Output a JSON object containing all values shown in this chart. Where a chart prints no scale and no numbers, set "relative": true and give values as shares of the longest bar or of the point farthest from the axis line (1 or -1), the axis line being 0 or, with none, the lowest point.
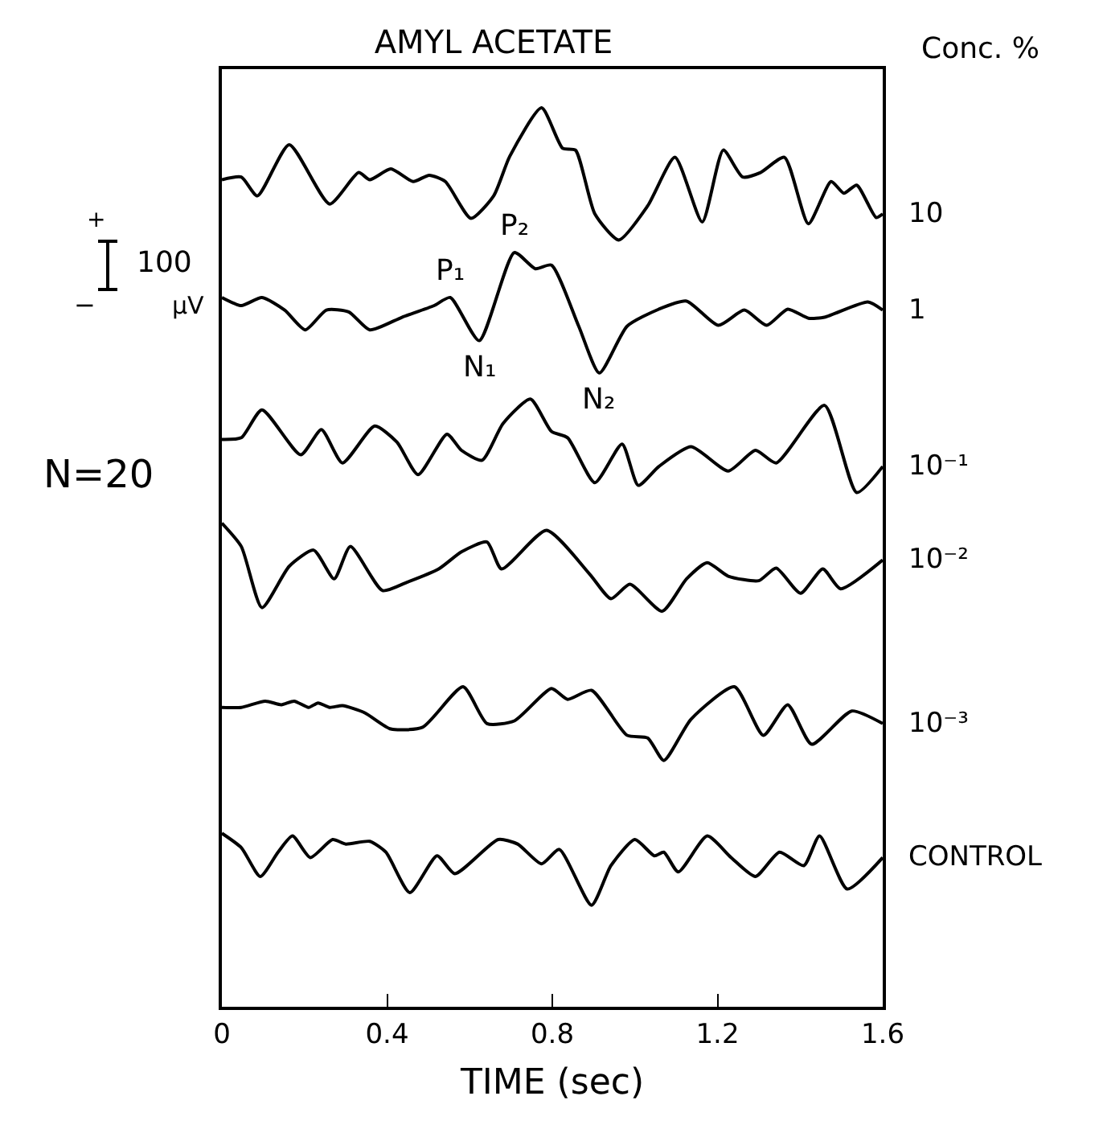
{
  "chart_data": {
    "type": "line",
    "title": "AMYL ACETATE",
    "xlabel": "TIME (sec)",
    "legend_title": "Conc. %",
    "relative": true,
    "line_style": "solid",
    "xlim": [
      0,
      1.6
    ],
    "xticks": [
      0,
      0.4,
      0.8,
      1.2,
      1.6
    ],
    "series": [
      {
        "name": "10",
        "color": "#000000",
        "x": [
          0,
          0.047,
          0.086,
          0.163,
          0.261,
          0.331,
          0.358,
          0.409,
          0.463,
          0.502,
          0.541,
          0.603,
          0.658,
          0.697,
          0.774,
          0.825,
          0.856,
          0.903,
          0.961,
          1.031,
          1.097,
          1.163,
          1.214,
          1.261,
          1.304,
          1.362,
          1.42,
          1.475,
          1.506,
          1.537,
          1.584,
          1.6
        ],
        "values": [
          0.92,
          0.923,
          0.902,
          0.959,
          0.893,
          0.928,
          0.92,
          0.932,
          0.918,
          0.925,
          0.918,
          0.877,
          0.902,
          0.946,
          1.0,
          0.955,
          0.953,
          0.882,
          0.853,
          0.891,
          0.945,
          0.873,
          0.953,
          0.923,
          0.928,
          0.945,
          0.871,
          0.918,
          0.905,
          0.914,
          0.878,
          0.882
        ]
      },
      {
        "name": "1",
        "color": "#000000",
        "x": [
          0,
          0.047,
          0.097,
          0.152,
          0.202,
          0.253,
          0.307,
          0.358,
          0.436,
          0.514,
          0.553,
          0.623,
          0.708,
          0.759,
          0.798,
          0.864,
          0.914,
          0.981,
          1.058,
          1.125,
          1.202,
          1.265,
          1.319,
          1.37,
          1.42,
          1.459,
          1.564,
          1.6
        ],
        "values": [
          0.789,
          0.78,
          0.789,
          0.775,
          0.753,
          0.775,
          0.773,
          0.753,
          0.767,
          0.78,
          0.789,
          0.741,
          0.839,
          0.821,
          0.825,
          0.757,
          0.705,
          0.757,
          0.776,
          0.785,
          0.758,
          0.775,
          0.758,
          0.776,
          0.766,
          0.767,
          0.784,
          0.775
        ]
      },
      {
        "name": "10⁻¹",
        "color": "#000000",
        "x": [
          0,
          0.047,
          0.097,
          0.191,
          0.241,
          0.292,
          0.37,
          0.424,
          0.475,
          0.545,
          0.58,
          0.63,
          0.681,
          0.747,
          0.798,
          0.837,
          0.903,
          0.969,
          1.008,
          1.058,
          1.136,
          1.226,
          1.292,
          1.342,
          1.459,
          1.537,
          1.6
        ],
        "values": [
          0.631,
          0.633,
          0.664,
          0.614,
          0.642,
          0.605,
          0.646,
          0.628,
          0.592,
          0.637,
          0.619,
          0.608,
          0.649,
          0.676,
          0.64,
          0.633,
          0.583,
          0.626,
          0.58,
          0.601,
          0.623,
          0.596,
          0.619,
          0.605,
          0.669,
          0.572,
          0.601
        ]
      },
      {
        "name": "10⁻²",
        "color": "#000000",
        "x": [
          0,
          0.047,
          0.097,
          0.163,
          0.222,
          0.272,
          0.311,
          0.389,
          0.447,
          0.525,
          0.58,
          0.642,
          0.677,
          0.786,
          0.891,
          0.942,
          0.988,
          1.066,
          1.125,
          1.175,
          1.226,
          1.3,
          1.342,
          1.401,
          1.455,
          1.498,
          1.6
        ],
        "values": [
          0.538,
          0.512,
          0.444,
          0.49,
          0.508,
          0.476,
          0.512,
          0.463,
          0.472,
          0.487,
          0.506,
          0.517,
          0.487,
          0.53,
          0.481,
          0.454,
          0.47,
          0.44,
          0.476,
          0.494,
          0.479,
          0.474,
          0.488,
          0.46,
          0.487,
          0.465,
          0.497
        ]
      },
      {
        "name": "10⁻³",
        "color": "#000000",
        "x": [
          0,
          0.047,
          0.105,
          0.144,
          0.175,
          0.21,
          0.233,
          0.261,
          0.292,
          0.346,
          0.409,
          0.486,
          0.584,
          0.642,
          0.708,
          0.798,
          0.837,
          0.895,
          0.981,
          1.031,
          1.07,
          1.136,
          1.241,
          1.311,
          1.37,
          1.428,
          1.525,
          1.6
        ],
        "values": [
          0.333,
          0.333,
          0.34,
          0.336,
          0.34,
          0.333,
          0.338,
          0.333,
          0.335,
          0.327,
          0.309,
          0.311,
          0.356,
          0.315,
          0.318,
          0.354,
          0.342,
          0.352,
          0.302,
          0.299,
          0.274,
          0.32,
          0.356,
          0.302,
          0.336,
          0.292,
          0.329,
          0.315
        ]
      },
      {
        "name": "CONTROL",
        "color": "#000000",
        "x": [
          0,
          0.047,
          0.093,
          0.136,
          0.171,
          0.214,
          0.268,
          0.3,
          0.358,
          0.397,
          0.455,
          0.521,
          0.564,
          0.669,
          0.716,
          0.774,
          0.817,
          0.895,
          0.942,
          1.0,
          1.047,
          1.07,
          1.105,
          1.175,
          1.233,
          1.292,
          1.35,
          1.409,
          1.447,
          1.514,
          1.6
        ],
        "values": [
          0.193,
          0.177,
          0.145,
          0.172,
          0.19,
          0.166,
          0.186,
          0.181,
          0.184,
          0.172,
          0.127,
          0.168,
          0.148,
          0.186,
          0.181,
          0.159,
          0.175,
          0.113,
          0.157,
          0.186,
          0.168,
          0.172,
          0.15,
          0.19,
          0.166,
          0.145,
          0.172,
          0.157,
          0.19,
          0.131,
          0.166
        ]
      }
    ],
    "annotations": [
      {
        "text": "P₁",
        "x": 0.553,
        "y": 0.789
      },
      {
        "text": "P₂",
        "x": 0.708,
        "y": 0.839
      },
      {
        "text": "N₁",
        "x": 0.623,
        "y": 0.741
      },
      {
        "text": "N₂",
        "x": 0.914,
        "y": 0.705
      },
      "N=20",
      "+",
      "100",
      "µV",
      "−"
    ]
  }
}
